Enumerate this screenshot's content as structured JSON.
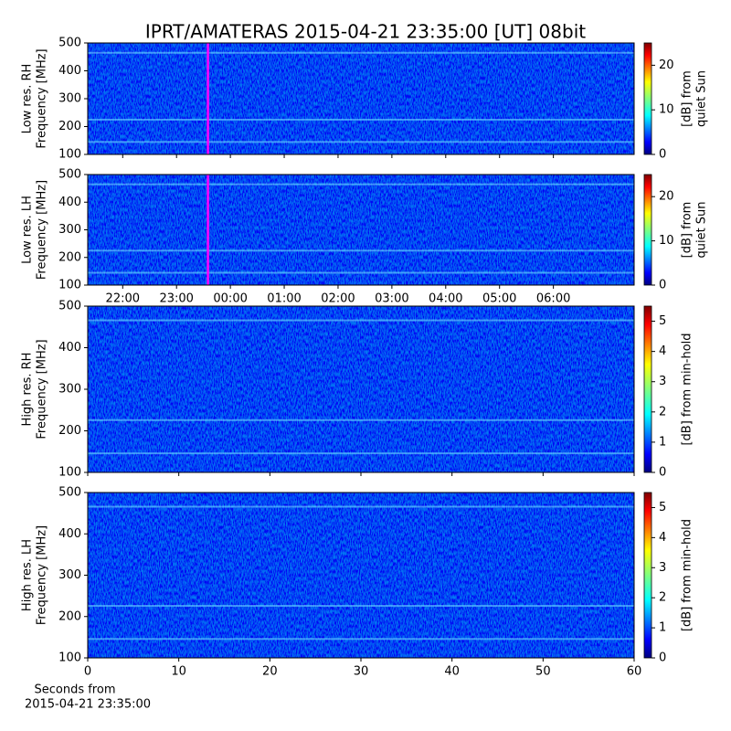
{
  "chart_data": [
    {
      "type": "heatmap",
      "title": "IPRT/AMATERAS 2015-04-21 23:35:00 [UT]   08bit",
      "y_label": [
        "Low res. RH",
        "Frequency [MHz]"
      ],
      "ylim": [
        100,
        500
      ],
      "yticks": [
        100,
        200,
        300,
        400,
        500
      ],
      "xlim": [
        21.35,
        31.5
      ],
      "colorbar_label": [
        "[dB] from",
        "quiet Sun"
      ],
      "clim": [
        0,
        25
      ],
      "cticks": [
        0,
        10,
        20
      ],
      "colormap": "jet",
      "marker_x": 23.5833,
      "marker_color": "#ff00ff"
    },
    {
      "type": "heatmap",
      "y_label": [
        "Low res. LH",
        "Frequency [MHz]"
      ],
      "ylim": [
        100,
        500
      ],
      "yticks": [
        100,
        200,
        300,
        400,
        500
      ],
      "xlim": [
        21.35,
        31.5
      ],
      "xticks": [
        {
          "value": 22,
          "label": "22:00"
        },
        {
          "value": 23,
          "label": "23:00"
        },
        {
          "value": 24,
          "label": "00:00"
        },
        {
          "value": 25,
          "label": "01:00"
        },
        {
          "value": 26,
          "label": "02:00"
        },
        {
          "value": 27,
          "label": "03:00"
        },
        {
          "value": 28,
          "label": "04:00"
        },
        {
          "value": 29,
          "label": "05:00"
        },
        {
          "value": 30,
          "label": "06:00"
        }
      ],
      "colorbar_label": [
        "[dB] from",
        "quiet Sun"
      ],
      "clim": [
        0,
        25
      ],
      "cticks": [
        0,
        10,
        20
      ],
      "colormap": "jet",
      "marker_x": 23.5833,
      "marker_color": "#ff00ff"
    },
    {
      "type": "heatmap",
      "y_label": [
        "High res. RH",
        "Frequency [MHz]"
      ],
      "ylim": [
        100,
        500
      ],
      "yticks": [
        100,
        200,
        300,
        400,
        500
      ],
      "xlim": [
        0,
        60
      ],
      "colorbar_label": [
        "[dB] from min-hold"
      ],
      "clim": [
        0,
        5.5
      ],
      "cticks": [
        0,
        1,
        2,
        3,
        4,
        5
      ],
      "colormap": "jet"
    },
    {
      "type": "heatmap",
      "y_label": [
        "High res. LH",
        "Frequency [MHz]"
      ],
      "ylim": [
        100,
        500
      ],
      "yticks": [
        100,
        200,
        300,
        400,
        500
      ],
      "xlim": [
        0,
        60
      ],
      "xticks": [
        0,
        10,
        20,
        30,
        40,
        50,
        60
      ],
      "x_label": [
        "Seconds from",
        "2015-04-21 23:35:00"
      ],
      "colorbar_label": [
        "[dB] from min-hold"
      ],
      "clim": [
        0,
        5.5
      ],
      "cticks": [
        0,
        1,
        2,
        3,
        4,
        5
      ],
      "colormap": "jet"
    }
  ]
}
